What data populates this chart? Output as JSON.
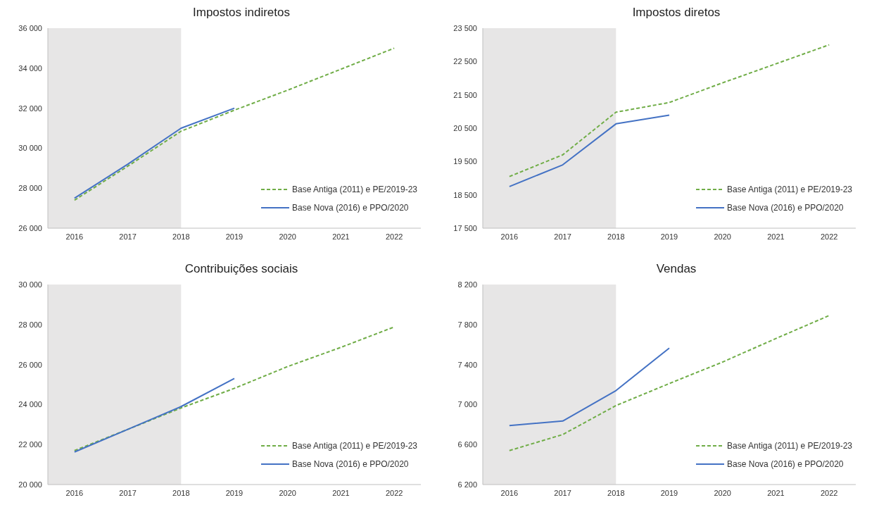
{
  "chart_data": [
    {
      "type": "line",
      "title": "Impostos indiretos",
      "categories": [
        "2016",
        "2017",
        "2018",
        "2019",
        "2020",
        "2021",
        "2022"
      ],
      "series": [
        {
          "name": "Base Antiga (2011) e PE/2019-23",
          "color": "#70ad47",
          "line_style": "dashed",
          "values": [
            27400,
            29100,
            30850,
            31900,
            32900,
            33950,
            35000
          ]
        },
        {
          "name": "Base Nova (2016) e PPO/2020",
          "color": "#4472c4",
          "line_style": "solid",
          "values": [
            27500,
            29200,
            31000,
            32000,
            null,
            null,
            null
          ]
        }
      ],
      "ylim": [
        26000,
        36000
      ],
      "yticks": [
        {
          "value": 26000,
          "label": "26 000"
        },
        {
          "value": 28000,
          "label": "28 000"
        },
        {
          "value": 30000,
          "label": "30 000"
        },
        {
          "value": 32000,
          "label": "32 000"
        },
        {
          "value": 34000,
          "label": "34 000"
        },
        {
          "value": 36000,
          "label": "36 000"
        }
      ],
      "bands": [
        {
          "axis": "x",
          "from": "2016",
          "to": "2018",
          "color": "#e7e6e6"
        }
      ],
      "grid": false,
      "legend": "bottom right",
      "marker": "none"
    },
    {
      "type": "line",
      "title": "Impostos diretos",
      "categories": [
        "2016",
        "2017",
        "2018",
        "2019",
        "2020",
        "2021",
        "2022"
      ],
      "series": [
        {
          "name": "Base Antiga (2011) e PE/2019-23",
          "color": "#70ad47",
          "line_style": "dashed",
          "values": [
            19050,
            19700,
            20980,
            21270,
            21860,
            22430,
            23000
          ]
        },
        {
          "name": "Base Nova (2016) e PPO/2020",
          "color": "#4472c4",
          "line_style": "solid",
          "values": [
            18750,
            19400,
            20630,
            20890,
            null,
            null,
            null
          ]
        }
      ],
      "ylim": [
        17500,
        23500
      ],
      "yticks": [
        {
          "value": 17500,
          "label": "17 500"
        },
        {
          "value": 18500,
          "label": "18 500"
        },
        {
          "value": 19500,
          "label": "19 500"
        },
        {
          "value": 20500,
          "label": "20 500"
        },
        {
          "value": 21500,
          "label": "21 500"
        },
        {
          "value": 22500,
          "label": "22 500"
        },
        {
          "value": 23500,
          "label": "23 500"
        }
      ],
      "bands": [
        {
          "axis": "x",
          "from": "2016",
          "to": "2018",
          "color": "#e7e6e6"
        }
      ],
      "grid": false,
      "legend": "bottom right",
      "marker": "none"
    },
    {
      "type": "line",
      "title": "Contribuições sociais",
      "categories": [
        "2016",
        "2017",
        "2018",
        "2019",
        "2020",
        "2021",
        "2022"
      ],
      "series": [
        {
          "name": "Base Antiga (2011) e PE/2019-23",
          "color": "#70ad47",
          "line_style": "dashed",
          "values": [
            21700,
            22760,
            23830,
            24810,
            25900,
            26860,
            27880
          ]
        },
        {
          "name": "Base Nova (2016) e PPO/2020",
          "color": "#4472c4",
          "line_style": "solid",
          "values": [
            21630,
            22760,
            23900,
            25300,
            null,
            null,
            null
          ]
        }
      ],
      "ylim": [
        20000,
        30000
      ],
      "yticks": [
        {
          "value": 20000,
          "label": "20 000"
        },
        {
          "value": 22000,
          "label": "22 000"
        },
        {
          "value": 24000,
          "label": "24 000"
        },
        {
          "value": 26000,
          "label": "26 000"
        },
        {
          "value": 28000,
          "label": "28 000"
        },
        {
          "value": 30000,
          "label": "30 000"
        }
      ],
      "bands": [
        {
          "axis": "x",
          "from": "2016",
          "to": "2018",
          "color": "#e7e6e6"
        }
      ],
      "grid": false,
      "legend": "bottom right",
      "marker": "none"
    },
    {
      "type": "line",
      "title": "Vendas",
      "categories": [
        "2016",
        "2017",
        "2018",
        "2019",
        "2020",
        "2021",
        "2022"
      ],
      "series": [
        {
          "name": "Base Antiga (2011) e PE/2019-23",
          "color": "#70ad47",
          "line_style": "dashed",
          "values": [
            6540,
            6700,
            6990,
            7210,
            7425,
            7660,
            7890
          ]
        },
        {
          "name": "Base Nova (2016) e PPO/2020",
          "color": "#4472c4",
          "line_style": "solid",
          "values": [
            6790,
            6835,
            7140,
            7565,
            null,
            null,
            null
          ]
        }
      ],
      "ylim": [
        6200,
        8200
      ],
      "yticks": [
        {
          "value": 6200,
          "label": "6 200"
        },
        {
          "value": 6600,
          "label": "6 600"
        },
        {
          "value": 7000,
          "label": "7 000"
        },
        {
          "value": 7400,
          "label": "7 400"
        },
        {
          "value": 7800,
          "label": "7 800"
        },
        {
          "value": 8200,
          "label": "8 200"
        }
      ],
      "bands": [
        {
          "axis": "x",
          "from": "2016",
          "to": "2018",
          "color": "#e7e6e6"
        }
      ],
      "grid": false,
      "legend": "bottom right",
      "marker": "none"
    }
  ]
}
